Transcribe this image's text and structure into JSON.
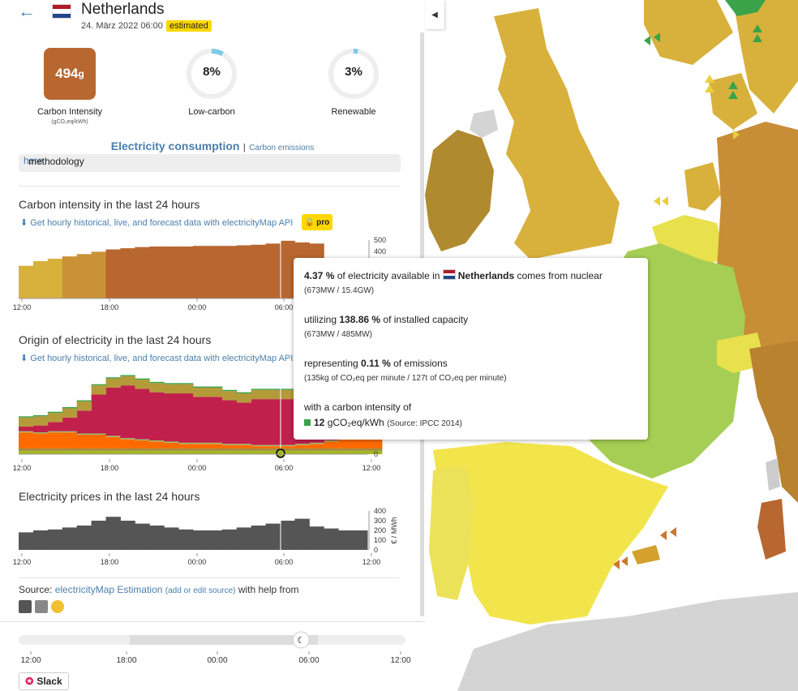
{
  "header": {
    "back_icon": "arrow-left-icon",
    "country": "Netherlands",
    "datetime": "24. März 2022 06:00",
    "badge": "estimated",
    "flag_colors": [
      "#ae1c28",
      "#ffffff",
      "#21468b"
    ]
  },
  "metrics": {
    "carbon_intensity": {
      "value": "494",
      "unit_suffix": "g",
      "label": "Carbon Intensity",
      "unit": "(gCO₂eq/kWh)",
      "color": "#b86730"
    },
    "low_carbon": {
      "value": "8%",
      "label": "Low-carbon",
      "fraction": 0.08
    },
    "renewable": {
      "value": "3%",
      "label": "Renewable",
      "fraction": 0.03
    }
  },
  "tabs": {
    "active": "Electricity consumption",
    "separator": "|",
    "other": "Carbon emissions"
  },
  "note": {
    "text": "methodology ",
    "link": "here",
    "end": "."
  },
  "sections": {
    "carbon": {
      "title": "Carbon intensity in the last 24 hours",
      "download": "Get hourly historical, live, and forecast data with electricityMap API",
      "pro": "pro"
    },
    "origin": {
      "title": "Origin of electricity in the last 24 hours",
      "download": "Get hourly historical, live, and forecast data with electricityMap API"
    },
    "prices": {
      "title": "Electricity prices in the last 24 hours",
      "unit": "€ / MWh"
    }
  },
  "x_ticks": [
    "12:00",
    "18:00",
    "00:00",
    "06:00",
    "12:00"
  ],
  "chart_data": [
    {
      "type": "area",
      "title": "Carbon intensity in the last 24 hours",
      "x": [
        "12:00",
        "13:00",
        "14:00",
        "15:00",
        "16:00",
        "17:00",
        "18:00",
        "19:00",
        "20:00",
        "21:00",
        "22:00",
        "23:00",
        "00:00",
        "01:00",
        "02:00",
        "03:00",
        "04:00",
        "05:00",
        "06:00",
        "07:00",
        "08:00"
      ],
      "values": [
        280,
        320,
        340,
        360,
        380,
        400,
        420,
        430,
        440,
        445,
        445,
        445,
        450,
        450,
        450,
        455,
        460,
        470,
        494,
        480,
        470
      ],
      "yticks": [
        "500",
        "400"
      ],
      "ylim": [
        0,
        500
      ]
    },
    {
      "type": "area",
      "title": "Origin of electricity in the last 24 hours",
      "x": [
        "12:00",
        "13:00",
        "14:00",
        "15:00",
        "16:00",
        "17:00",
        "18:00",
        "19:00",
        "20:00",
        "21:00",
        "22:00",
        "23:00",
        "00:00",
        "01:00",
        "02:00",
        "03:00",
        "04:00",
        "05:00",
        "06:00",
        "07:00",
        "08:00",
        "09:00",
        "10:00",
        "11:00",
        "12:00"
      ],
      "series": [
        {
          "color": "#a6b523",
          "values": [
            3,
            3,
            3,
            3,
            3,
            3,
            3,
            3,
            3,
            3,
            3,
            3,
            3,
            3,
            3,
            3,
            3,
            3,
            3,
            3,
            3,
            3,
            3,
            3,
            3
          ]
        },
        {
          "color": "#9e8a3e",
          "values": [
            2,
            2,
            2,
            2,
            2,
            2,
            2,
            2,
            2,
            2,
            2,
            2,
            2,
            2,
            2,
            2,
            2,
            2,
            2,
            2,
            2,
            2,
            2,
            2,
            2
          ]
        },
        {
          "color": "#ff6a00",
          "values": [
            14,
            13,
            14,
            14,
            12,
            12,
            10,
            8,
            7,
            6,
            5,
            4,
            4,
            4,
            3,
            3,
            2,
            2,
            2,
            3,
            4,
            6,
            8,
            10,
            12
          ]
        },
        {
          "color": "#93bf6b",
          "values": [
            1,
            1,
            1,
            1,
            1,
            1,
            1,
            1,
            1,
            1,
            1,
            1,
            1,
            1,
            1,
            1,
            1,
            1,
            1,
            1,
            1,
            1,
            1,
            1,
            1
          ]
        },
        {
          "color": "#c1204c",
          "values": [
            4,
            6,
            8,
            12,
            20,
            34,
            42,
            46,
            44,
            42,
            42,
            43,
            40,
            40,
            38,
            36,
            40,
            40,
            40,
            38,
            30,
            25,
            20,
            15,
            10
          ]
        },
        {
          "color": "#b59a3a",
          "values": [
            8,
            8,
            8,
            8,
            8,
            8,
            8,
            8,
            8,
            8,
            8,
            8,
            8,
            8,
            8,
            8,
            8,
            8,
            8,
            8,
            8,
            8,
            8,
            8,
            8
          ]
        },
        {
          "color": "#3aa34a",
          "values": [
            1,
            1,
            1,
            1,
            1,
            1,
            1,
            1,
            1,
            1,
            1,
            1,
            1,
            1,
            1,
            1,
            1,
            1,
            1,
            1,
            1,
            1,
            1,
            1,
            1
          ]
        }
      ],
      "yticks": [
        "0"
      ]
    },
    {
      "type": "bar",
      "title": "Electricity prices in the last 24 hours",
      "x": [
        "12:00",
        "13:00",
        "14:00",
        "15:00",
        "16:00",
        "17:00",
        "18:00",
        "19:00",
        "20:00",
        "21:00",
        "22:00",
        "23:00",
        "00:00",
        "01:00",
        "02:00",
        "03:00",
        "04:00",
        "05:00",
        "06:00",
        "07:00",
        "08:00",
        "09:00",
        "10:00",
        "11:00"
      ],
      "values": [
        180,
        200,
        210,
        230,
        250,
        300,
        340,
        300,
        270,
        250,
        230,
        210,
        200,
        200,
        210,
        230,
        250,
        270,
        300,
        320,
        240,
        220,
        200,
        200
      ],
      "yticks": [
        "400",
        "300",
        "200",
        "100",
        "0"
      ],
      "ylabel": "€ / MWh",
      "ylim": [
        0,
        400
      ]
    }
  ],
  "tooltip": {
    "line1_pct": "4.37 %",
    "line1_mid": " of electricity available in ",
    "line1_country": "Netherlands",
    "line1_end": " comes from nuclear",
    "line1_sub": "(673MW / 15.4GW)",
    "line2_pre": "utilizing ",
    "line2_pct": "138.86 %",
    "line2_end": " of installed capacity",
    "line2_sub": "(673MW / 485MW)",
    "line3_pre": "representing ",
    "line3_pct": "0.11 %",
    "line3_end": " of emissions",
    "line3_sub": "(135kg of CO₂eq per minute / 127t of CO₂eq per minute)",
    "line4": "with a carbon intensity of",
    "line4_val": "12",
    "line4_unit": " gCO₂eq/kWh",
    "line4_src": "(Source: IPCC 2014)",
    "square_color": "#3aa34a"
  },
  "source": {
    "prefix": "Source: ",
    "link": "electricityMap Estimation",
    "edit": "(add or edit source)",
    "suffix": " with help from"
  },
  "timeline": {
    "ticks": [
      "12:00",
      "18:00",
      "00:00",
      "06:00",
      "12:00"
    ],
    "position": 0.73,
    "handle_icon": "moon-icon"
  },
  "slack": {
    "label": "Slack",
    "icon": "slack-icon"
  },
  "map_colors": {
    "nl": "#b86730",
    "fr": "#a6ce54",
    "es": "#f2e54c",
    "uk": "#d8b13d",
    "de": "#c78d37",
    "sea": "#e5e5e5"
  }
}
